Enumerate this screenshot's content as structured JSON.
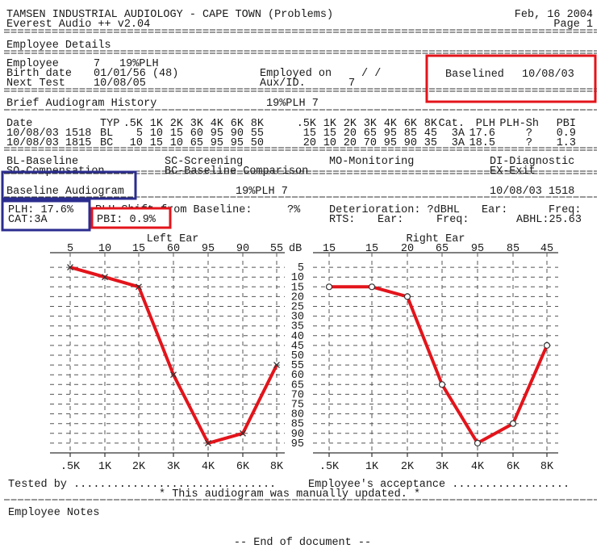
{
  "header": {
    "title": "TAMSEN INDUSTRIAL AUDIOLOGY - CAPE TOWN (Problems)",
    "date": "Feb, 16  2004",
    "software": "Everest Audio ++  v2.04",
    "page": "Page   1"
  },
  "employee": {
    "heading": "Employee Details",
    "employee_label": "Employee",
    "employee_id": "7",
    "plh": "19%PLH",
    "birth_label": "Birth date",
    "birth_value": "01/01/56 (48)",
    "next_label": "Next Test",
    "next_value": "10/08/05",
    "employed_label": "Employed on",
    "employed_value": "/  /",
    "aux_label": "Aux/ID.",
    "aux_value": "7",
    "baselined_label": "Baselined",
    "baselined_value": "10/08/03"
  },
  "history": {
    "heading": "Brief Audiogram History",
    "summary": "19%PLH 7",
    "columns": [
      "Date",
      "TYP",
      ".5K",
      "1K",
      "2K",
      "3K",
      "4K",
      "6K",
      "8K",
      ".5K",
      "1K",
      "2K",
      "3K",
      "4K",
      "6K",
      "8K",
      "Cat.",
      "PLH",
      "PLH-Sh",
      "PBI"
    ],
    "rows": [
      [
        "10/08/03 1518",
        "BL",
        "5",
        "10",
        "15",
        "60",
        "95",
        "90",
        "55",
        "15",
        "15",
        "20",
        "65",
        "95",
        "85",
        "45",
        "3A",
        "17.6",
        "?",
        "0.9"
      ],
      [
        "10/08/03 1815",
        "BC",
        "10",
        "15",
        "10",
        "65",
        "95",
        "95",
        "50",
        "20",
        "10",
        "20",
        "70",
        "95",
        "90",
        "35",
        "3A",
        "18.5",
        "?",
        "1.3"
      ]
    ]
  },
  "legend": [
    "BL-Baseline",
    "SC-Screening",
    "MO-Monitoring",
    "DI-Diagnostic",
    "SO-Compensation",
    "BC-Baseline Comparison",
    "EX-Exit"
  ],
  "baseline": {
    "heading": "Baseline Audiogram",
    "summary": "19%PLH 7",
    "datetime": "10/08/03 1518",
    "plh": "PLH: 17.6%",
    "cat": "CAT:3A",
    "shift_label": "PLH Shift from Baseline:",
    "shift_value": "?%",
    "pbi": "PBI:  0.9%",
    "deterioration": "Deterioration: ?dBHL",
    "ear1": "Ear:",
    "freq1": "Freq:",
    "rts": "RTS:",
    "ear2": "Ear:",
    "freq2": "Freq:",
    "abhl": "ABHL:25.63"
  },
  "audiogram_scale": {
    "unit": "dB",
    "ylim": [
      0,
      100
    ],
    "yticks": [
      5,
      10,
      15,
      20,
      25,
      30,
      35,
      40,
      45,
      50,
      55,
      60,
      65,
      70,
      75,
      80,
      85,
      90,
      95
    ]
  },
  "audiograms": [
    {
      "title": "Left Ear",
      "categories": [
        ".5K",
        "1K",
        "2K",
        "3K",
        "4K",
        "6K",
        "8K"
      ],
      "values": [
        5,
        10,
        15,
        60,
        95,
        90,
        55
      ],
      "marker": "x",
      "color": "#e3141b"
    },
    {
      "title": "Right Ear",
      "categories": [
        ".5K",
        "1K",
        "2K",
        "3K",
        "4K",
        "6K",
        "8K"
      ],
      "values": [
        15,
        15,
        20,
        65,
        95,
        85,
        45
      ],
      "marker": "o",
      "color": "#e3141b"
    }
  ],
  "footer": {
    "tested_by": "Tested by ...............................",
    "acceptance": "Employee's acceptance ..................",
    "note": "* This audiogram was manually updated. *",
    "notes_heading": "Employee Notes",
    "end": "-- End of document --"
  }
}
